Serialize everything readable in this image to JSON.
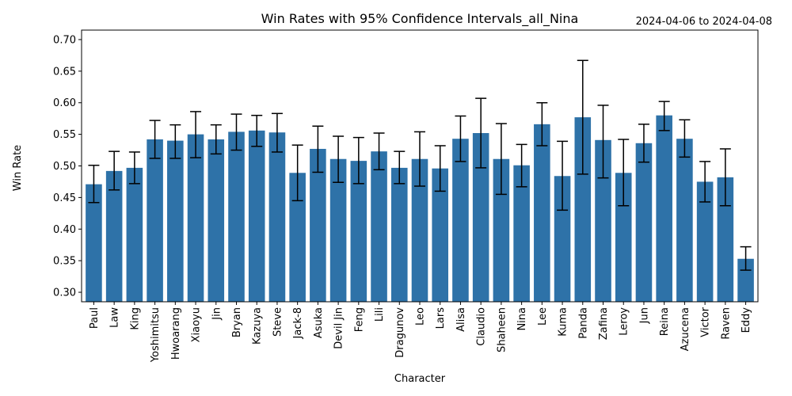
{
  "chart_data": {
    "type": "bar",
    "title": "Win Rates with 95% Confidence Intervals_all_Nina",
    "date_range": "2024-04-06 to 2024-04-08",
    "xlabel": "Character",
    "ylabel": "Win Rate",
    "ylim": [
      0.285,
      0.715
    ],
    "yticks": [
      "0.30",
      "0.35",
      "0.40",
      "0.45",
      "0.50",
      "0.55",
      "0.60",
      "0.65",
      "0.70"
    ],
    "bar_color": "#2e72a8",
    "errorbar_color": "#000000",
    "grid": false,
    "categories": [
      "Paul",
      "Law",
      "King",
      "Yoshimitsu",
      "Hwoarang",
      "Xiaoyu",
      "Jin",
      "Bryan",
      "Kazuya",
      "Steve",
      "Jack-8",
      "Asuka",
      "Devil Jin",
      "Feng",
      "Lili",
      "Dragunov",
      "Leo",
      "Lars",
      "Alisa",
      "Claudio",
      "Shaheen",
      "Nina",
      "Lee",
      "Kuma",
      "Panda",
      "Zafina",
      "Leroy",
      "Jun",
      "Reina",
      "Azucena",
      "Victor",
      "Raven",
      "Eddy"
    ],
    "values": [
      0.471,
      0.492,
      0.497,
      0.542,
      0.54,
      0.55,
      0.542,
      0.554,
      0.556,
      0.553,
      0.489,
      0.527,
      0.511,
      0.508,
      0.523,
      0.497,
      0.511,
      0.496,
      0.543,
      0.552,
      0.511,
      0.501,
      0.566,
      0.484,
      0.577,
      0.541,
      0.489,
      0.536,
      0.58,
      0.543,
      0.475,
      0.482,
      0.353
    ],
    "ci_low": [
      0.442,
      0.462,
      0.472,
      0.512,
      0.512,
      0.513,
      0.519,
      0.525,
      0.531,
      0.522,
      0.445,
      0.49,
      0.474,
      0.472,
      0.494,
      0.472,
      0.468,
      0.46,
      0.507,
      0.497,
      0.455,
      0.467,
      0.532,
      0.43,
      0.487,
      0.481,
      0.437,
      0.506,
      0.556,
      0.514,
      0.443,
      0.437,
      0.335
    ],
    "ci_high": [
      0.501,
      0.523,
      0.522,
      0.572,
      0.565,
      0.586,
      0.565,
      0.582,
      0.58,
      0.583,
      0.533,
      0.563,
      0.547,
      0.545,
      0.552,
      0.523,
      0.554,
      0.532,
      0.579,
      0.607,
      0.567,
      0.534,
      0.6,
      0.539,
      0.667,
      0.596,
      0.542,
      0.566,
      0.602,
      0.573,
      0.507,
      0.527,
      0.372
    ]
  }
}
